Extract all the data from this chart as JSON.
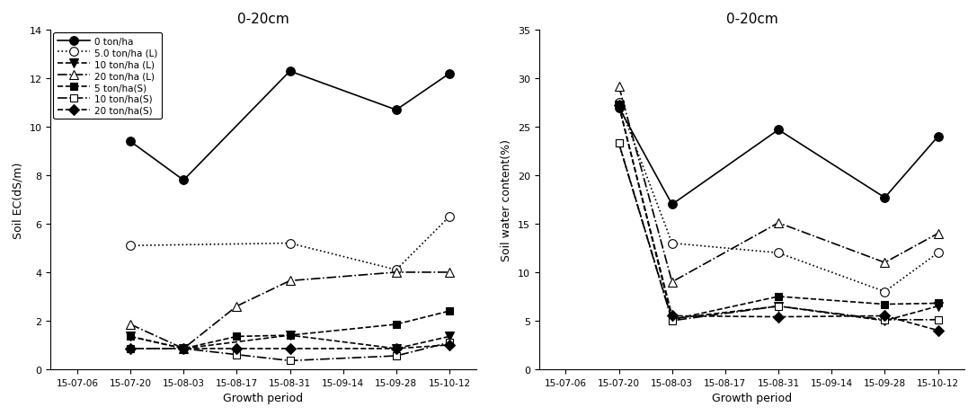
{
  "x_labels": [
    "15-07-06",
    "15-07-20",
    "15-08-03",
    "15-08-17",
    "15-08-31",
    "15-09-14",
    "15-09-28",
    "15-10-12"
  ],
  "title": "0-20cm",
  "xlabel": "Growth period",
  "ec_ylabel": "Soil EC(dS/m)",
  "ec_ylim": [
    0,
    14
  ],
  "ec_yticks": [
    0,
    2,
    4,
    6,
    8,
    10,
    12,
    14
  ],
  "wc_ylabel": "Soil water content(%)",
  "wc_ylim": [
    0,
    35
  ],
  "wc_yticks": [
    0,
    5,
    10,
    15,
    20,
    25,
    30,
    35
  ],
  "series": [
    {
      "label": "0 ton/ha",
      "ec": [
        null,
        9.4,
        7.8,
        null,
        12.3,
        null,
        10.7,
        12.2
      ],
      "wc": [
        null,
        27.0,
        17.0,
        null,
        24.7,
        null,
        17.7,
        24.0
      ],
      "ls": "-",
      "marker": "o",
      "mfc": "black",
      "ms": 7,
      "lw": 1.2
    },
    {
      "label": "5.0 ton/ha (L)",
      "ec": [
        null,
        5.1,
        null,
        null,
        5.2,
        null,
        4.1,
        6.3
      ],
      "wc": [
        null,
        27.5,
        13.0,
        null,
        12.0,
        null,
        8.0,
        12.0
      ],
      "ls": ":",
      "marker": "o",
      "mfc": "white",
      "ms": 7,
      "lw": 1.2
    },
    {
      "label": "10 ton/ha (L)",
      "ec": [
        null,
        1.35,
        0.85,
        null,
        1.4,
        null,
        0.85,
        1.35
      ],
      "wc": [
        null,
        27.2,
        5.2,
        null,
        6.5,
        null,
        5.0,
        6.5
      ],
      "ls": "--",
      "marker": "v",
      "mfc": "black",
      "ms": 7,
      "lw": 1.2
    },
    {
      "label": "20 ton/ha (L)",
      "ec": [
        null,
        1.85,
        0.85,
        2.6,
        3.65,
        null,
        4.0,
        4.0
      ],
      "wc": [
        null,
        29.2,
        9.0,
        null,
        15.1,
        null,
        11.0,
        14.0
      ],
      "ls": "-.",
      "marker": "^",
      "mfc": "white",
      "ms": 7,
      "lw": 1.2
    },
    {
      "label": "5 ton/ha(S)",
      "ec": [
        null,
        1.35,
        0.85,
        1.35,
        1.4,
        null,
        1.85,
        2.4
      ],
      "wc": [
        null,
        23.3,
        5.1,
        null,
        7.5,
        null,
        6.7,
        6.8
      ],
      "ls": "--",
      "marker": "s",
      "mfc": "black",
      "ms": 6,
      "lw": 1.2
    },
    {
      "label": "10 ton/ha(S)",
      "ec": [
        null,
        0.85,
        0.85,
        0.6,
        0.35,
        null,
        0.55,
        1.1
      ],
      "wc": [
        null,
        23.3,
        5.0,
        null,
        6.5,
        null,
        5.1,
        5.1
      ],
      "ls": "-.",
      "marker": "s",
      "mfc": "white",
      "ms": 6,
      "lw": 1.2
    },
    {
      "label": "20 ton/ha(S)",
      "ec": [
        null,
        0.85,
        0.85,
        0.85,
        0.85,
        null,
        0.85,
        1.0
      ],
      "wc": [
        null,
        27.2,
        5.5,
        null,
        5.4,
        null,
        5.5,
        4.0
      ],
      "ls": "--",
      "marker": "D",
      "mfc": "black",
      "ms": 6,
      "lw": 1.2
    }
  ]
}
